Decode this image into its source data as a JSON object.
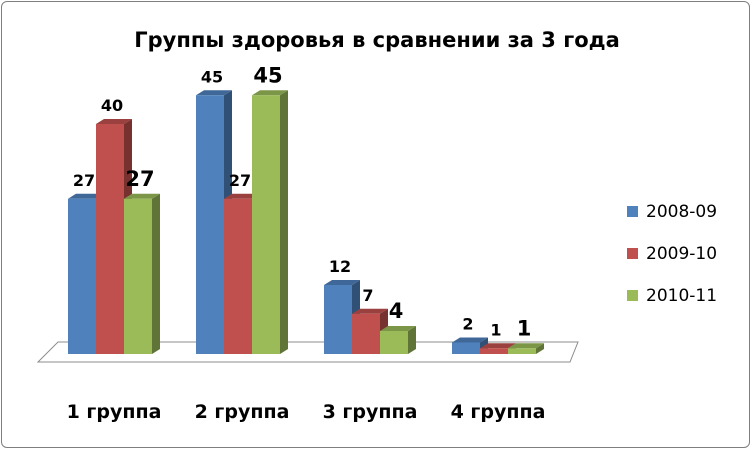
{
  "chart_data": {
    "type": "bar",
    "title": "Группы здоровья в сравнении за 3 года",
    "categories": [
      "1 группа",
      "2 группа",
      "3 группа",
      "4 группа"
    ],
    "series": [
      {
        "name": "2008-09",
        "values": [
          27,
          45,
          12,
          2
        ],
        "color": "#4f81bd"
      },
      {
        "name": "2009-10",
        "values": [
          40,
          27,
          7,
          1
        ],
        "color": "#c0504d"
      },
      {
        "name": "2010-11",
        "values": [
          27,
          45,
          4,
          1
        ],
        "color": "#9bbb59"
      }
    ],
    "ylim": [
      0,
      50
    ],
    "grid": false,
    "legend": "right",
    "style": "3d-clustered-column"
  }
}
